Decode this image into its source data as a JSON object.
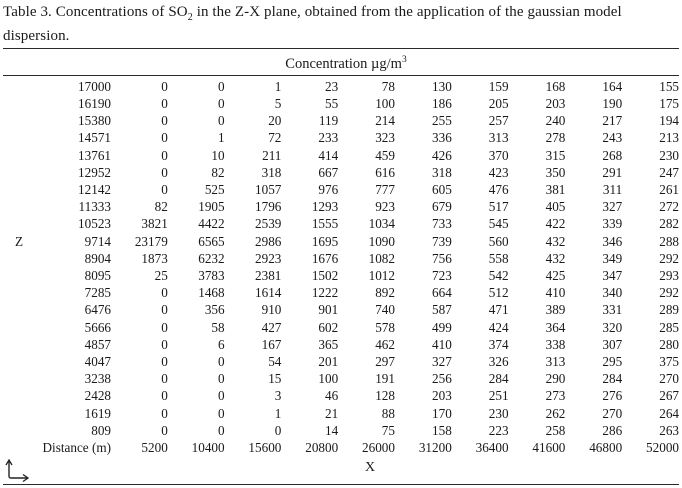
{
  "title": {
    "prefix": "Table 3. Concentrations of SO",
    "subscript": "2",
    "suffix": " in the Z-X plane, obtained from the application of the gaussian model dispersion."
  },
  "header": {
    "concentration": "Concentration µg/m",
    "exponent": "3"
  },
  "axis": {
    "z_label": "Z",
    "x_label": "X"
  },
  "icons": {
    "axes": "z-x-axes-arrows"
  },
  "colors": {
    "text": "#1a1a1a",
    "rule": "#2a2a2a",
    "background": "#ffffff"
  },
  "table": {
    "z_axis_row": 9,
    "distance_label": "Distance (m)",
    "distances": [
      5200,
      10400,
      15600,
      20800,
      26000,
      31200,
      36400,
      41600,
      46800,
      52000
    ],
    "rows": [
      {
        "z": 17000,
        "values": [
          0,
          0,
          1,
          23,
          78,
          130,
          159,
          168,
          164,
          155
        ]
      },
      {
        "z": 16190,
        "values": [
          0,
          0,
          5,
          55,
          100,
          186,
          205,
          203,
          190,
          175
        ]
      },
      {
        "z": 15380,
        "values": [
          0,
          0,
          20,
          119,
          214,
          255,
          257,
          240,
          217,
          194
        ]
      },
      {
        "z": 14571,
        "values": [
          0,
          1,
          72,
          233,
          323,
          336,
          313,
          278,
          243,
          213
        ]
      },
      {
        "z": 13761,
        "values": [
          0,
          10,
          211,
          414,
          459,
          426,
          370,
          315,
          268,
          230
        ]
      },
      {
        "z": 12952,
        "values": [
          0,
          82,
          318,
          667,
          616,
          318,
          423,
          350,
          291,
          247
        ]
      },
      {
        "z": 12142,
        "values": [
          0,
          525,
          1057,
          976,
          777,
          605,
          476,
          381,
          311,
          261
        ]
      },
      {
        "z": 11333,
        "values": [
          82,
          1905,
          1796,
          1293,
          923,
          679,
          517,
          405,
          327,
          272
        ]
      },
      {
        "z": 10523,
        "values": [
          3821,
          4422,
          2539,
          1555,
          1034,
          733,
          545,
          422,
          339,
          282
        ]
      },
      {
        "z": 9714,
        "values": [
          23179,
          6565,
          2986,
          1695,
          1090,
          739,
          560,
          432,
          346,
          288
        ]
      },
      {
        "z": 8904,
        "values": [
          1873,
          6232,
          2923,
          1676,
          1082,
          756,
          558,
          432,
          349,
          292
        ]
      },
      {
        "z": 8095,
        "values": [
          25,
          3783,
          2381,
          1502,
          1012,
          723,
          542,
          425,
          347,
          293
        ]
      },
      {
        "z": 7285,
        "values": [
          0,
          1468,
          1614,
          1222,
          892,
          664,
          512,
          410,
          340,
          292
        ]
      },
      {
        "z": 6476,
        "values": [
          0,
          356,
          910,
          901,
          740,
          587,
          471,
          389,
          331,
          289
        ]
      },
      {
        "z": 5666,
        "values": [
          0,
          58,
          427,
          602,
          578,
          499,
          424,
          364,
          320,
          285
        ]
      },
      {
        "z": 4857,
        "values": [
          0,
          6,
          167,
          365,
          462,
          410,
          374,
          338,
          307,
          280
        ]
      },
      {
        "z": 4047,
        "values": [
          0,
          0,
          54,
          201,
          297,
          327,
          326,
          313,
          295,
          375
        ]
      },
      {
        "z": 3238,
        "values": [
          0,
          0,
          15,
          100,
          191,
          256,
          284,
          290,
          284,
          270
        ]
      },
      {
        "z": 2428,
        "values": [
          0,
          0,
          3,
          46,
          128,
          203,
          251,
          273,
          276,
          267
        ]
      },
      {
        "z": 1619,
        "values": [
          0,
          0,
          1,
          21,
          88,
          170,
          230,
          262,
          270,
          264
        ]
      },
      {
        "z": 809,
        "values": [
          0,
          0,
          0,
          14,
          75,
          158,
          223,
          258,
          286,
          263
        ]
      }
    ]
  }
}
